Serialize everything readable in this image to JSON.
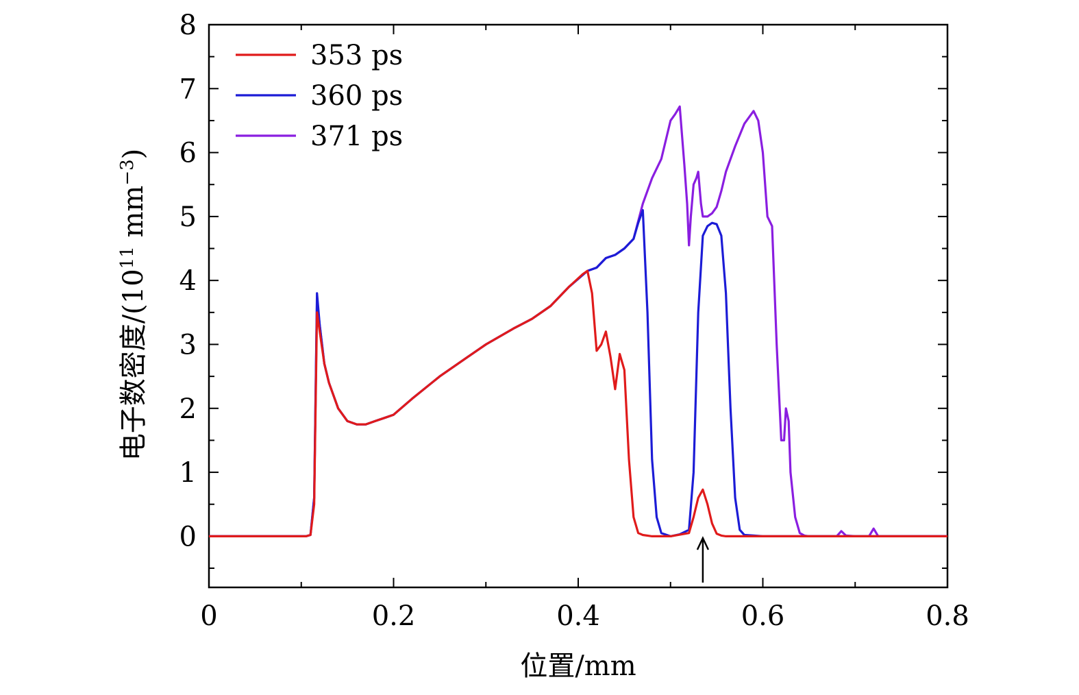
{
  "chart_data": {
    "type": "line",
    "title": "",
    "xlabel": "位置/mm",
    "ylabel": "电子数密度/(10",
    "ylabel_exp": "11",
    "ylabel_unit": " mm",
    "ylabel_unit_exp": "−3",
    "ylabel_close": ")",
    "xlim": [
      0,
      0.8
    ],
    "ylim": [
      -0.8,
      8
    ],
    "xticks": [
      0,
      0.2,
      0.4,
      0.6,
      0.8
    ],
    "xtick_labels": [
      "0",
      "0.2",
      "0.4",
      "0.6",
      "0.8"
    ],
    "yticks": [
      0,
      1,
      2,
      3,
      4,
      5,
      6,
      7,
      8
    ],
    "ytick_labels": [
      "0",
      "1",
      "2",
      "3",
      "4",
      "5",
      "6",
      "7",
      "8"
    ],
    "grid": false,
    "legend_position": "top-left",
    "annotation": {
      "type": "arrow",
      "x": 0.535,
      "label": ""
    },
    "series": [
      {
        "name": "353 ps",
        "color": "#e01b1b",
        "x": [
          0,
          0.105,
          0.11,
          0.114,
          0.117,
          0.12,
          0.125,
          0.13,
          0.14,
          0.15,
          0.16,
          0.17,
          0.18,
          0.19,
          0.2,
          0.22,
          0.25,
          0.28,
          0.3,
          0.33,
          0.35,
          0.37,
          0.39,
          0.405,
          0.41,
          0.415,
          0.42,
          0.425,
          0.43,
          0.435,
          0.44,
          0.445,
          0.45,
          0.455,
          0.46,
          0.465,
          0.47,
          0.48,
          0.5,
          0.52,
          0.525,
          0.53,
          0.535,
          0.54,
          0.545,
          0.55,
          0.555,
          0.56,
          0.6,
          0.7,
          0.8
        ],
        "y": [
          0,
          0,
          0.02,
          0.5,
          3.5,
          3.2,
          2.7,
          2.4,
          2.0,
          1.8,
          1.75,
          1.75,
          1.8,
          1.85,
          1.9,
          2.15,
          2.5,
          2.8,
          3.0,
          3.25,
          3.4,
          3.6,
          3.9,
          4.1,
          4.15,
          3.8,
          2.9,
          3.0,
          3.2,
          2.8,
          2.3,
          2.85,
          2.6,
          1.2,
          0.3,
          0.05,
          0.02,
          0,
          0,
          0.05,
          0.3,
          0.6,
          0.73,
          0.5,
          0.2,
          0.04,
          0.01,
          0,
          0,
          0,
          0
        ]
      },
      {
        "name": "360 ps",
        "color": "#1c1cd6",
        "x": [
          0,
          0.105,
          0.11,
          0.114,
          0.117,
          0.12,
          0.125,
          0.13,
          0.14,
          0.15,
          0.16,
          0.17,
          0.18,
          0.19,
          0.2,
          0.22,
          0.25,
          0.28,
          0.3,
          0.33,
          0.35,
          0.37,
          0.39,
          0.41,
          0.42,
          0.43,
          0.44,
          0.45,
          0.46,
          0.465,
          0.47,
          0.475,
          0.48,
          0.485,
          0.49,
          0.5,
          0.51,
          0.52,
          0.525,
          0.53,
          0.535,
          0.54,
          0.545,
          0.55,
          0.555,
          0.56,
          0.565,
          0.57,
          0.575,
          0.58,
          0.59,
          0.6,
          0.7,
          0.8
        ],
        "y": [
          0,
          0,
          0.02,
          0.6,
          3.8,
          3.3,
          2.7,
          2.4,
          2.0,
          1.8,
          1.75,
          1.75,
          1.8,
          1.85,
          1.9,
          2.15,
          2.5,
          2.8,
          3.0,
          3.25,
          3.4,
          3.6,
          3.9,
          4.15,
          4.2,
          4.35,
          4.4,
          4.5,
          4.65,
          4.9,
          5.1,
          3.5,
          1.2,
          0.3,
          0.05,
          0,
          0.03,
          0.1,
          1.0,
          3.5,
          4.7,
          4.85,
          4.9,
          4.88,
          4.7,
          3.8,
          2.0,
          0.6,
          0.1,
          0.02,
          0.01,
          0,
          0,
          0
        ]
      },
      {
        "name": "371 ps",
        "color": "#8a1ee0",
        "x": [
          0,
          0.105,
          0.11,
          0.114,
          0.117,
          0.12,
          0.125,
          0.13,
          0.14,
          0.15,
          0.16,
          0.17,
          0.18,
          0.19,
          0.2,
          0.22,
          0.25,
          0.28,
          0.3,
          0.33,
          0.35,
          0.37,
          0.39,
          0.41,
          0.42,
          0.43,
          0.44,
          0.45,
          0.46,
          0.47,
          0.48,
          0.49,
          0.5,
          0.505,
          0.51,
          0.515,
          0.518,
          0.52,
          0.522,
          0.525,
          0.528,
          0.53,
          0.533,
          0.535,
          0.54,
          0.545,
          0.55,
          0.555,
          0.56,
          0.57,
          0.58,
          0.59,
          0.595,
          0.6,
          0.605,
          0.61,
          0.615,
          0.62,
          0.623,
          0.625,
          0.628,
          0.63,
          0.635,
          0.64,
          0.645,
          0.65,
          0.66,
          0.68,
          0.685,
          0.69,
          0.7,
          0.715,
          0.72,
          0.725,
          0.8
        ],
        "y": [
          0,
          0,
          0.02,
          0.6,
          3.7,
          3.3,
          2.7,
          2.4,
          2.0,
          1.8,
          1.75,
          1.75,
          1.8,
          1.85,
          1.9,
          2.15,
          2.5,
          2.8,
          3.0,
          3.25,
          3.4,
          3.6,
          3.9,
          4.15,
          4.2,
          4.35,
          4.4,
          4.5,
          4.65,
          5.2,
          5.6,
          5.9,
          6.5,
          6.6,
          6.72,
          5.8,
          5.2,
          4.55,
          5.0,
          5.5,
          5.6,
          5.7,
          5.2,
          5.0,
          5.0,
          5.05,
          5.15,
          5.4,
          5.7,
          6.1,
          6.45,
          6.65,
          6.5,
          6.0,
          5.0,
          4.85,
          3.0,
          1.5,
          1.5,
          2.0,
          1.8,
          1.0,
          0.3,
          0.05,
          0.01,
          0,
          0,
          0,
          0.08,
          0.01,
          0,
          0,
          0.12,
          0,
          0
        ]
      }
    ]
  }
}
